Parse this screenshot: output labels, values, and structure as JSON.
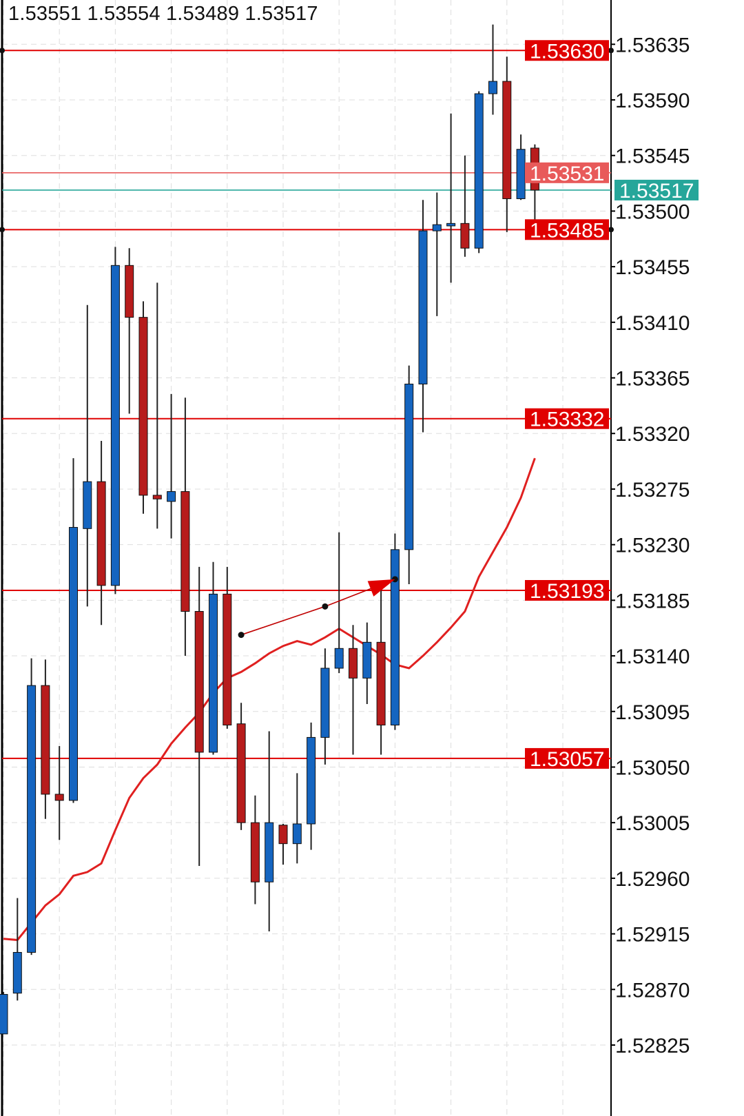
{
  "header": {
    "ohlc": "1.53551 1.53554 1.53489 1.53517"
  },
  "colors": {
    "bull": "#1565c0",
    "bear": "#b71c1c",
    "wick": "#222222",
    "level": "#e00000",
    "bid": "#e85a5a",
    "last": "#26a69a",
    "ma": "#e02020",
    "grid": "#dddddd"
  },
  "chart_data": {
    "type": "candlestick",
    "ylim": [
      1.52795,
      1.5368
    ],
    "y_ticks": [
      "1.53635",
      "1.53590",
      "1.53545",
      "1.53500",
      "1.53455",
      "1.53410",
      "1.53365",
      "1.53320",
      "1.53275",
      "1.53230",
      "1.53185",
      "1.53140",
      "1.53095",
      "1.53050",
      "1.53005",
      "1.52960",
      "1.52915",
      "1.52870",
      "1.52825"
    ],
    "grid": true,
    "candles": [
      [
        1.52834,
        1.52868,
        1.52834,
        1.52866
      ],
      [
        1.52867,
        1.52944,
        1.52861,
        1.529
      ],
      [
        1.529,
        1.53138,
        1.52898,
        1.53116
      ],
      [
        1.53116,
        1.53137,
        1.53008,
        1.53028
      ],
      [
        1.53028,
        1.53067,
        1.52991,
        1.53023
      ],
      [
        1.53023,
        1.533,
        1.53021,
        1.53244
      ],
      [
        1.53243,
        1.53424,
        1.5318,
        1.53281
      ],
      [
        1.53281,
        1.53314,
        1.53165,
        1.53197
      ],
      [
        1.53197,
        1.53471,
        1.5319,
        1.53456
      ],
      [
        1.53456,
        1.5347,
        1.53336,
        1.53414
      ],
      [
        1.53414,
        1.53427,
        1.53255,
        1.5327
      ],
      [
        1.5327,
        1.53442,
        1.53243,
        1.53267
      ],
      [
        1.53265,
        1.53352,
        1.53235,
        1.53273
      ],
      [
        1.53273,
        1.53349,
        1.5314,
        1.53176
      ],
      [
        1.53176,
        1.53212,
        1.5297,
        1.53062
      ],
      [
        1.53062,
        1.53216,
        1.5306,
        1.5319
      ],
      [
        1.5319,
        1.53212,
        1.53081,
        1.53084
      ],
      [
        1.53085,
        1.53102,
        1.52999,
        1.53005
      ],
      [
        1.53005,
        1.53027,
        1.52939,
        1.52957
      ],
      [
        1.52957,
        1.53079,
        1.52917,
        1.53005
      ],
      [
        1.53003,
        1.53004,
        1.52971,
        1.52988
      ],
      [
        1.52988,
        1.53045,
        1.52972,
        1.53004
      ],
      [
        1.53004,
        1.53086,
        1.52983,
        1.53074
      ],
      [
        1.53074,
        1.53146,
        1.53052,
        1.5313
      ],
      [
        1.5313,
        1.5324,
        1.53126,
        1.53146
      ],
      [
        1.53146,
        1.53165,
        1.5306,
        1.53122
      ],
      [
        1.53122,
        1.53167,
        1.53101,
        1.53151
      ],
      [
        1.53151,
        1.532,
        1.5306,
        1.53084
      ],
      [
        1.53084,
        1.53239,
        1.5308,
        1.53226
      ],
      [
        1.53226,
        1.53375,
        1.53198,
        1.5336
      ],
      [
        1.5336,
        1.53509,
        1.53321,
        1.53484
      ],
      [
        1.53484,
        1.53515,
        1.53415,
        1.53489
      ],
      [
        1.53488,
        1.53579,
        1.53442,
        1.5349
      ],
      [
        1.5349,
        1.53545,
        1.53463,
        1.5347
      ],
      [
        1.5347,
        1.53597,
        1.53466,
        1.53595
      ],
      [
        1.53595,
        1.53651,
        1.53578,
        1.53605
      ],
      [
        1.53605,
        1.53625,
        1.53483,
        1.5351
      ],
      [
        1.5351,
        1.53562,
        1.53509,
        1.5355
      ],
      [
        1.53551,
        1.53554,
        1.53489,
        1.53517
      ]
    ],
    "moving_average": [
      1.52911,
      1.5291,
      1.52924,
      1.52938,
      1.52947,
      1.52962,
      1.52965,
      1.52972,
      1.52999,
      1.53025,
      1.53041,
      1.53052,
      1.53069,
      1.53082,
      1.53094,
      1.5311,
      1.53122,
      1.53127,
      1.53134,
      1.53142,
      1.53148,
      1.53152,
      1.53149,
      1.53155,
      1.53162,
      1.53155,
      1.53148,
      1.53141,
      1.53133,
      1.5313,
      1.5314,
      1.53151,
      1.53163,
      1.53176,
      1.53204,
      1.53224,
      1.53244,
      1.53268,
      1.533
    ],
    "trendline": [
      {
        "bar": 17,
        "price": 1.53157
      },
      {
        "bar": 23,
        "price": 1.5318
      },
      {
        "bar": 28,
        "price": 1.53202
      }
    ],
    "levels": [
      {
        "price": 1.5363,
        "label": "1.53630",
        "kind": "level",
        "dots": true
      },
      {
        "price": 1.53531,
        "label": "1.53531",
        "kind": "bid",
        "dots": false
      },
      {
        "price": 1.53517,
        "label": "1.53517",
        "kind": "last",
        "dots": false
      },
      {
        "price": 1.53485,
        "label": "1.53485",
        "kind": "level",
        "dots": true
      },
      {
        "price": 1.53332,
        "label": "1.53332",
        "kind": "level",
        "dots": false
      },
      {
        "price": 1.53193,
        "label": "1.53193",
        "kind": "level",
        "dots": false
      },
      {
        "price": 1.53057,
        "label": "1.53057",
        "kind": "level",
        "dots": false
      }
    ]
  }
}
